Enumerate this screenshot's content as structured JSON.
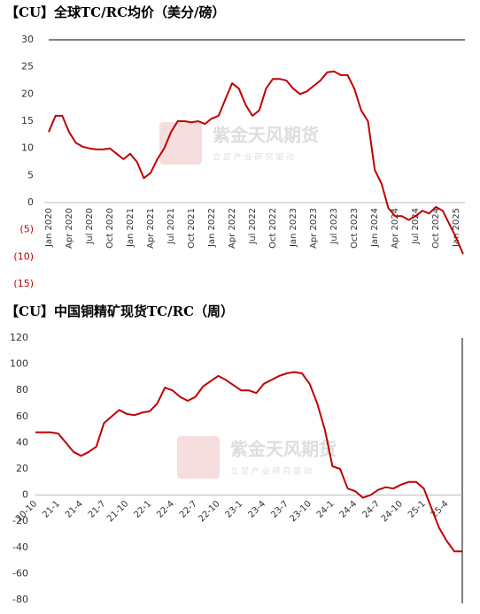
{
  "chart_data": [
    {
      "type": "line",
      "title": "【CU】全球TC/RC均价（美分/磅）",
      "watermark": "紫金天风期货",
      "watermark_subtitle": "立 足 产 业   研 究 驱 动",
      "categories": [
        "Jan 2020",
        null,
        null,
        "Apr 2020",
        null,
        null,
        "Jul 2020",
        null,
        null,
        "Oct 2020",
        null,
        null,
        "Jan 2021",
        null,
        null,
        "Apr 2021",
        null,
        null,
        "Jul 2021",
        null,
        null,
        "Oct 2021",
        null,
        null,
        "Jan 2022",
        null,
        null,
        "Apr 2022",
        null,
        null,
        "Jul 2022",
        null,
        null,
        "Oct 2022",
        null,
        null,
        "Jan 2023",
        null,
        null,
        "Apr 2023",
        null,
        null,
        "Jul 2023",
        null,
        null,
        "Oct 2023",
        null,
        null,
        "Jan 2024",
        null,
        null,
        "Apr 2024",
        null,
        null,
        "Jul 2024",
        null,
        null,
        "Oct 2024",
        null,
        null,
        "Jan 2025",
        null
      ],
      "values": [
        13,
        16,
        16,
        13,
        11,
        10.3,
        10,
        9.8,
        9.8,
        10,
        9,
        8,
        9,
        7.5,
        4.5,
        5.5,
        8,
        10,
        13,
        15,
        15,
        14.8,
        15,
        14.5,
        15.5,
        16,
        19,
        22,
        21,
        18,
        16,
        17,
        21,
        22.8,
        22.8,
        22.5,
        21,
        20,
        20.5,
        21.5,
        22.5,
        24,
        24.2,
        23.5,
        23.5,
        21,
        17,
        15,
        6,
        3.5,
        -1,
        -2.5,
        -2.5,
        -3.2,
        -2.5,
        -1.5,
        -2,
        -0.8,
        -1.5,
        -4,
        -6.5,
        -9.5
      ],
      "color": "#c00000",
      "ylim": [
        -15,
        30
      ],
      "yticks": [
        30,
        25,
        20,
        15,
        10,
        5,
        0,
        {
          "value": -5,
          "label": "(5)"
        },
        {
          "value": -10,
          "label": "(10)"
        },
        {
          "value": -15,
          "label": "(15)"
        }
      ],
      "negative_tick_color": "#c00000",
      "grid": false
    },
    {
      "type": "line",
      "title": "【CU】中国铜精矿现货TC/RC（周）",
      "watermark": "紫金天风期货",
      "watermark_subtitle": "立 足 产 业   研 究 驱 动",
      "categories": [
        "20-10",
        null,
        null,
        "21-1",
        null,
        null,
        "21-4",
        null,
        null,
        "21-7",
        null,
        null,
        "21-10",
        null,
        null,
        "22-1",
        null,
        null,
        "22-4",
        null,
        null,
        "22-7",
        null,
        null,
        "22-10",
        null,
        null,
        "23-1",
        null,
        null,
        "23-4",
        null,
        null,
        "23-7",
        null,
        null,
        "23-10",
        null,
        null,
        "24-1",
        null,
        null,
        "24-4",
        null,
        null,
        "24-7",
        null,
        null,
        "24-10",
        null,
        null,
        "25-1",
        null,
        null,
        "25-4",
        null,
        null
      ],
      "values": [
        48,
        48,
        48,
        47,
        40,
        33,
        30,
        33,
        37,
        55,
        60,
        65,
        62,
        61,
        63,
        64,
        70,
        82,
        80,
        75,
        72,
        75,
        83,
        87,
        91,
        88,
        84,
        80,
        80,
        78,
        85,
        88,
        91,
        93,
        94,
        93,
        85,
        70,
        50,
        22,
        20,
        5,
        3,
        -2,
        0,
        4,
        6,
        5,
        8,
        10,
        10,
        5,
        -10,
        -25,
        -35,
        -43,
        -43
      ],
      "color": "#c00000",
      "ylim": [
        -80,
        120
      ],
      "yticks": [
        -80,
        -60,
        -40,
        -20,
        0,
        20,
        40,
        60,
        80,
        100,
        120
      ],
      "grid": false
    }
  ]
}
